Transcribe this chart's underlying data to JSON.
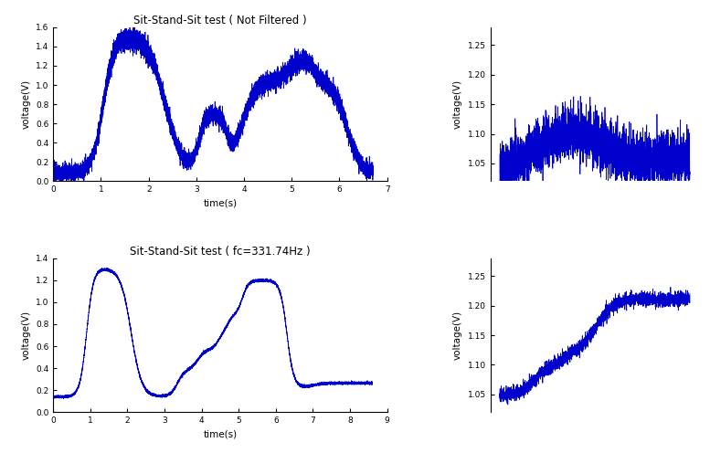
{
  "top_left": {
    "title": "Sit-Stand-Sit test ( Not Filtered )",
    "xlabel": "time(s)",
    "ylabel": "voltage(V)",
    "xlim": [
      0,
      7
    ],
    "ylim": [
      0,
      1.6
    ],
    "xticks": [
      0,
      1,
      2,
      3,
      4,
      5,
      6,
      7
    ],
    "yticks": [
      0,
      0.2,
      0.4,
      0.6,
      0.8,
      1.0,
      1.2,
      1.4,
      1.6
    ]
  },
  "top_right": {
    "ylabel": "voltage(V)",
    "ylim": [
      1.02,
      1.28
    ],
    "yticks": [
      1.05,
      1.1,
      1.15,
      1.2,
      1.25
    ]
  },
  "bottom_left": {
    "title": "Sit-Stand-Sit test ( fc=331.74Hz )",
    "xlabel": "time(s)",
    "ylabel": "voltage(V)",
    "xlim": [
      0,
      9
    ],
    "ylim": [
      0,
      1.4
    ],
    "xticks": [
      0,
      1,
      2,
      3,
      4,
      5,
      6,
      7,
      8,
      9
    ],
    "yticks": [
      0,
      0.2,
      0.4,
      0.6,
      0.8,
      1.0,
      1.2,
      1.4
    ]
  },
  "bottom_right": {
    "ylabel": "voltage(V)",
    "ylim": [
      1.02,
      1.28
    ],
    "yticks": [
      1.05,
      1.1,
      1.15,
      1.2,
      1.25
    ]
  },
  "line_color": "#0000CC",
  "line_width": 0.55,
  "background_color": "#FFFFFF",
  "tick_fontsize": 6.5,
  "label_fontsize": 7.5,
  "title_fontsize": 8.5
}
